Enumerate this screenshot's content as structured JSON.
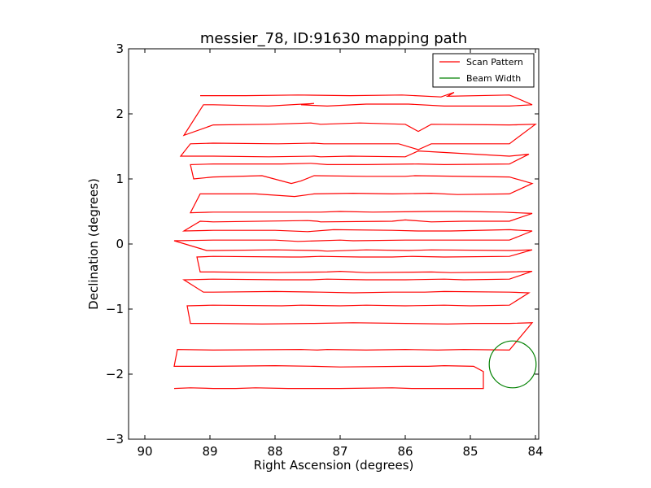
{
  "chart_data": {
    "type": "line",
    "title": "messier_78, ID:91630 mapping path",
    "xlabel": "Right Ascension (degrees)",
    "ylabel": "Declination (degrees)",
    "xlim": [
      90.25,
      83.95
    ],
    "ylim": [
      -3,
      3
    ],
    "x_ticks": [
      90,
      89,
      88,
      87,
      86,
      85,
      84
    ],
    "y_ticks": [
      3,
      2,
      1,
      0,
      -1,
      -2,
      -3
    ],
    "x_tick_labels": [
      "90",
      "89",
      "88",
      "87",
      "86",
      "85",
      "84"
    ],
    "y_tick_labels": [
      "3",
      "2",
      "1",
      "0",
      "−1",
      "−2",
      "−3"
    ],
    "grid": false,
    "legend_position": "top-right",
    "series": [
      {
        "name": "Scan Pattern",
        "color": "#ff0000",
        "x": [
          89.15,
          88.45,
          87.65,
          86.85,
          86.05,
          85.45,
          85.25,
          85.35,
          84.4,
          84.05,
          84.4,
          85.4,
          85.95,
          86.6,
          87.2,
          87.6,
          87.4,
          88.1,
          88.95,
          89.1,
          89.4,
          88.95,
          88.1,
          87.45,
          87.3,
          86.7,
          86.0,
          85.8,
          85.6,
          84.4,
          84.0,
          84.4,
          85.6,
          85.8,
          86.1,
          86.6,
          87.25,
          87.4,
          87.95,
          88.95,
          89.3,
          89.45,
          88.95,
          88.1,
          87.4,
          87.3,
          86.85,
          86.0,
          85.8,
          84.4,
          84.1,
          84.4,
          85.4,
          85.8,
          86.6,
          87.2,
          87.45,
          87.9,
          88.95,
          89.3,
          89.25,
          88.95,
          88.2,
          87.75,
          87.6,
          87.4,
          86.6,
          86.0,
          85.85,
          84.4,
          84.05,
          84.4,
          85.2,
          85.6,
          86.2,
          86.8,
          87.4,
          87.7,
          88.3,
          88.95,
          89.15,
          89.3,
          88.95,
          88.0,
          87.3,
          87.0,
          86.5,
          85.6,
          85.2,
          84.5,
          84.05,
          84.4,
          85.1,
          85.6,
          86.0,
          86.2,
          87.3,
          87.35,
          87.5,
          88.95,
          89.15,
          89.4,
          88.95,
          88.0,
          87.5,
          87.1,
          86.2,
          85.8,
          85.3,
          84.4,
          84.05,
          84.4,
          85.3,
          85.6,
          86.0,
          86.8,
          87.0,
          87.65,
          88.0,
          88.95,
          89.55,
          89.05,
          88.95,
          88.0,
          87.35,
          87.2,
          86.6,
          85.95,
          85.6,
          84.4,
          84.05,
          84.4,
          85.4,
          85.9,
          86.2,
          86.7,
          87.3,
          87.6,
          87.75,
          88.95,
          89.2,
          89.15,
          88.95,
          88.0,
          87.2,
          87.0,
          86.6,
          85.6,
          85.3,
          84.4,
          84.05,
          84.4,
          85.1,
          85.4,
          86.0,
          86.6,
          87.2,
          87.45,
          87.9,
          88.95,
          89.4,
          89.1,
          88.95,
          88.0,
          87.3,
          86.8,
          86.2,
          85.7,
          85.4,
          84.4,
          84.1,
          84.4,
          85.0,
          85.4,
          86.0,
          86.6,
          87.0,
          87.6,
          87.9,
          88.95,
          89.35,
          89.3,
          88.95,
          88.2,
          87.4,
          86.8,
          86.0,
          85.35,
          84.95,
          84.4,
          84.05,
          84.4,
          85.1,
          85.5,
          86.0,
          86.6,
          87.2,
          87.35,
          87.6,
          88.95,
          89.5,
          89.55,
          88.95,
          88.0,
          87.4,
          87.0,
          86.0,
          85.65,
          85.4,
          84.95,
          84.8,
          84.8,
          85.9,
          86.2,
          87.0,
          87.8,
          88.3,
          88.6,
          88.95,
          89.3,
          89.55
        ],
        "y": [
          2.28,
          2.28,
          2.29,
          2.28,
          2.29,
          2.26,
          2.33,
          2.27,
          2.29,
          2.14,
          2.12,
          2.12,
          2.15,
          2.15,
          2.12,
          2.14,
          2.16,
          2.12,
          2.14,
          2.14,
          1.67,
          1.83,
          1.84,
          1.86,
          1.84,
          1.86,
          1.84,
          1.73,
          1.84,
          1.83,
          1.84,
          1.54,
          1.54,
          1.45,
          1.54,
          1.54,
          1.54,
          1.55,
          1.54,
          1.55,
          1.54,
          1.35,
          1.35,
          1.34,
          1.35,
          1.34,
          1.35,
          1.34,
          1.43,
          1.35,
          1.38,
          1.23,
          1.22,
          1.23,
          1.22,
          1.22,
          1.24,
          1.23,
          1.23,
          1.22,
          1.0,
          1.03,
          1.05,
          0.93,
          0.97,
          1.05,
          1.04,
          1.04,
          1.05,
          1.03,
          0.93,
          0.77,
          0.76,
          0.78,
          0.77,
          0.78,
          0.77,
          0.73,
          0.77,
          0.77,
          0.77,
          0.48,
          0.49,
          0.49,
          0.49,
          0.5,
          0.49,
          0.5,
          0.5,
          0.49,
          0.47,
          0.35,
          0.35,
          0.34,
          0.37,
          0.35,
          0.34,
          0.35,
          0.36,
          0.34,
          0.35,
          0.2,
          0.21,
          0.21,
          0.19,
          0.22,
          0.21,
          0.2,
          0.2,
          0.22,
          0.2,
          0.06,
          0.06,
          0.06,
          0.06,
          0.05,
          0.06,
          0.04,
          0.06,
          0.06,
          0.05,
          -0.1,
          -0.1,
          -0.09,
          -0.1,
          -0.11,
          -0.09,
          -0.1,
          -0.09,
          -0.1,
          -0.09,
          -0.19,
          -0.2,
          -0.19,
          -0.2,
          -0.2,
          -0.19,
          -0.2,
          -0.2,
          -0.19,
          -0.2,
          -0.43,
          -0.43,
          -0.44,
          -0.43,
          -0.42,
          -0.44,
          -0.43,
          -0.44,
          -0.43,
          -0.42,
          -0.54,
          -0.55,
          -0.54,
          -0.55,
          -0.55,
          -0.54,
          -0.55,
          -0.55,
          -0.54,
          -0.55,
          -0.74,
          -0.74,
          -0.73,
          -0.74,
          -0.75,
          -0.74,
          -0.74,
          -0.73,
          -0.74,
          -0.75,
          -0.94,
          -0.95,
          -0.94,
          -0.95,
          -0.94,
          -0.95,
          -0.94,
          -0.95,
          -0.94,
          -0.95,
          -1.22,
          -1.22,
          -1.23,
          -1.22,
          -1.21,
          -1.22,
          -1.23,
          -1.22,
          -1.22,
          -1.21,
          -1.63,
          -1.62,
          -1.63,
          -1.62,
          -1.63,
          -1.62,
          -1.63,
          -1.62,
          -1.63,
          -1.62,
          -1.88,
          -1.88,
          -1.87,
          -1.88,
          -1.89,
          -1.88,
          -1.88,
          -1.87,
          -1.88,
          -1.96,
          -2.22,
          -2.22,
          -2.21,
          -2.22,
          -2.22,
          -2.21,
          -2.22,
          -2.22,
          -2.21,
          -2.22
        ]
      },
      {
        "name": "Beam Width",
        "color": "#008000",
        "shape": "circle",
        "center": [
          84.35,
          -1.85
        ],
        "radius_deg": 0.36
      }
    ]
  }
}
